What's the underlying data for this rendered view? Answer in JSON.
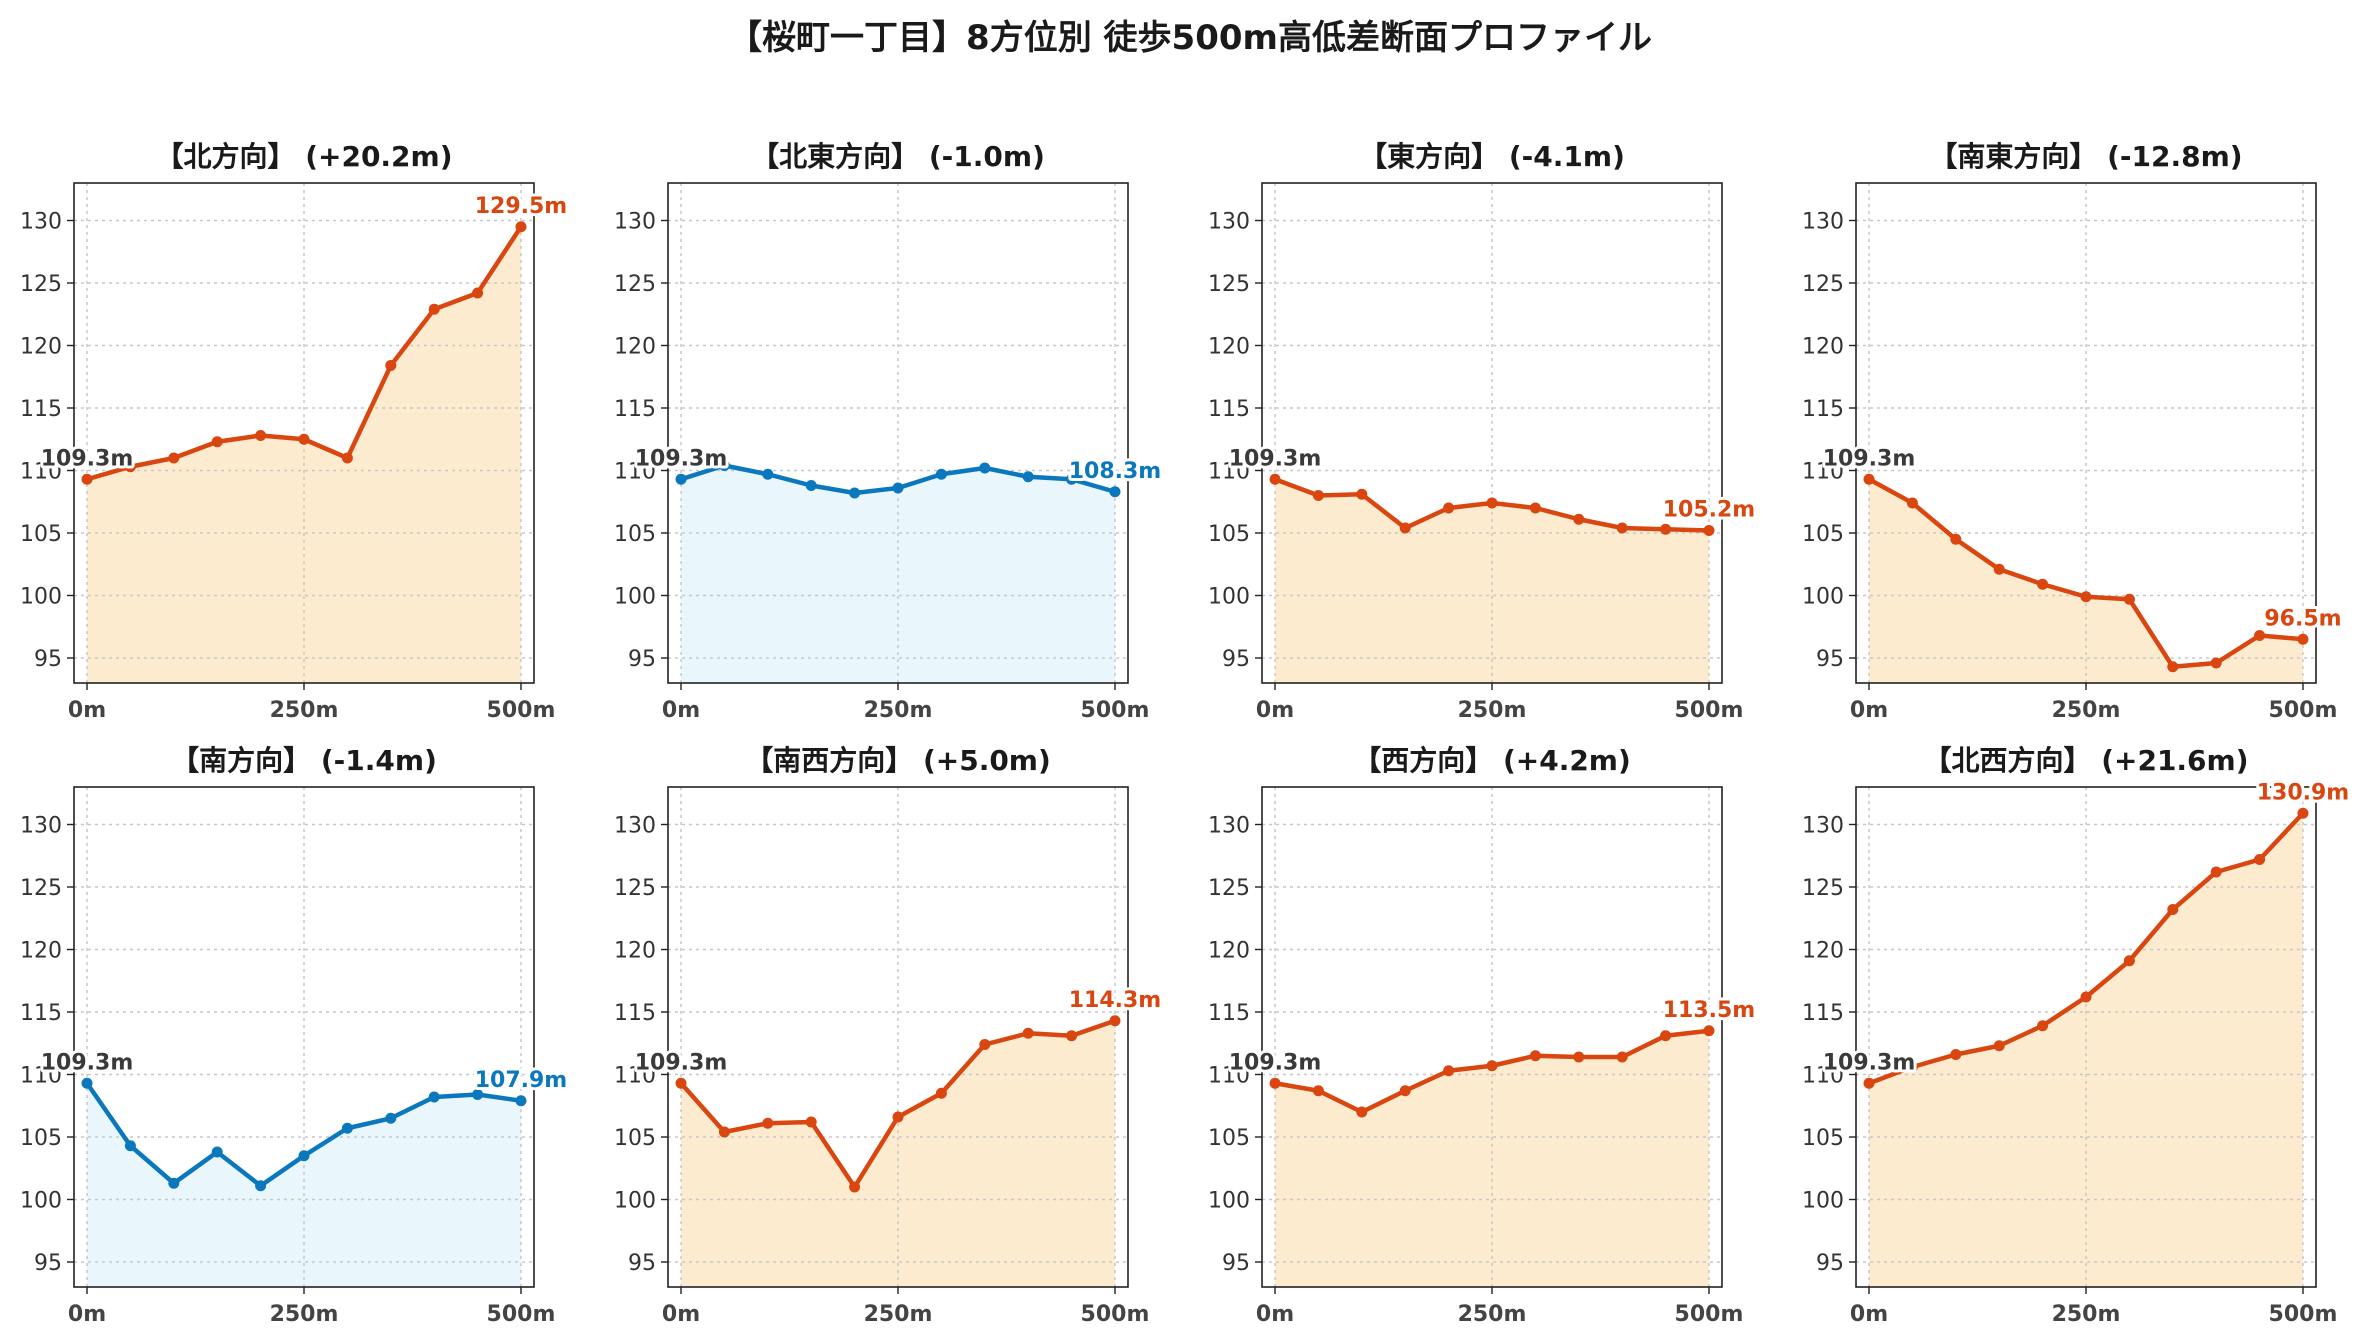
{
  "title": "【桜町一丁目】8方位別 徒歩500m高低差断面プロファイル",
  "colors": {
    "up_line": "#d9460f",
    "up_fill": "#fdebd0",
    "down_line": "#0b78be",
    "down_fill": "#e9f6fb",
    "start_label": "#3a3a3a",
    "grid": "#c8c8c8"
  },
  "chart_data": [
    {
      "type": "area",
      "title": "【北方向】 (+20.2m)",
      "x": [
        0,
        50,
        100,
        150,
        200,
        250,
        300,
        350,
        400,
        450,
        500
      ],
      "y": [
        109.3,
        110.3,
        111.0,
        112.3,
        112.8,
        112.5,
        111.0,
        118.4,
        122.9,
        124.2,
        129.5
      ],
      "xticks": [
        "0m",
        "250m",
        "500m"
      ],
      "yticks": [
        95,
        100,
        105,
        110,
        115,
        120,
        125,
        130
      ],
      "ylim": [
        93,
        133
      ],
      "xlim": [
        -15,
        515
      ],
      "start_label": "109.3m",
      "end_label": "129.5m",
      "style": "up",
      "grid": true
    },
    {
      "type": "area",
      "title": "【北東方向】 (-1.0m)",
      "x": [
        0,
        50,
        100,
        150,
        200,
        250,
        300,
        350,
        400,
        450,
        500
      ],
      "y": [
        109.3,
        110.4,
        109.7,
        108.8,
        108.2,
        108.6,
        109.7,
        110.2,
        109.5,
        109.3,
        108.3
      ],
      "xticks": [
        "0m",
        "250m",
        "500m"
      ],
      "yticks": [
        95,
        100,
        105,
        110,
        115,
        120,
        125,
        130
      ],
      "ylim": [
        93,
        133
      ],
      "xlim": [
        -15,
        515
      ],
      "start_label": "109.3m",
      "end_label": "108.3m",
      "style": "down",
      "grid": true
    },
    {
      "type": "area",
      "title": "【東方向】 (-4.1m)",
      "x": [
        0,
        50,
        100,
        150,
        200,
        250,
        300,
        350,
        400,
        450,
        500
      ],
      "y": [
        109.3,
        108.0,
        108.1,
        105.4,
        107.0,
        107.4,
        107.0,
        106.1,
        105.4,
        105.3,
        105.2
      ],
      "xticks": [
        "0m",
        "250m",
        "500m"
      ],
      "yticks": [
        95,
        100,
        105,
        110,
        115,
        120,
        125,
        130
      ],
      "ylim": [
        93,
        133
      ],
      "xlim": [
        -15,
        515
      ],
      "start_label": "109.3m",
      "end_label": "105.2m",
      "style": "up",
      "grid": true
    },
    {
      "type": "area",
      "title": "【南東方向】 (-12.8m)",
      "x": [
        0,
        50,
        100,
        150,
        200,
        250,
        300,
        350,
        400,
        450,
        500
      ],
      "y": [
        109.3,
        107.4,
        104.5,
        102.1,
        100.9,
        99.9,
        99.7,
        94.3,
        94.6,
        96.8,
        96.5
      ],
      "xticks": [
        "0m",
        "250m",
        "500m"
      ],
      "yticks": [
        95,
        100,
        105,
        110,
        115,
        120,
        125,
        130
      ],
      "ylim": [
        93,
        133
      ],
      "xlim": [
        -15,
        515
      ],
      "start_label": "109.3m",
      "end_label": "96.5m",
      "style": "up",
      "grid": true
    },
    {
      "type": "area",
      "title": "【南方向】 (-1.4m)",
      "x": [
        0,
        50,
        100,
        150,
        200,
        250,
        300,
        350,
        400,
        450,
        500
      ],
      "y": [
        109.3,
        104.3,
        101.3,
        103.8,
        101.1,
        103.5,
        105.7,
        106.5,
        108.2,
        108.4,
        107.9
      ],
      "xticks": [
        "0m",
        "250m",
        "500m"
      ],
      "yticks": [
        95,
        100,
        105,
        110,
        115,
        120,
        125,
        130
      ],
      "ylim": [
        93,
        133
      ],
      "xlim": [
        -15,
        515
      ],
      "start_label": "109.3m",
      "end_label": "107.9m",
      "style": "down",
      "grid": true
    },
    {
      "type": "area",
      "title": "【南西方向】 (+5.0m)",
      "x": [
        0,
        50,
        100,
        150,
        200,
        250,
        300,
        350,
        400,
        450,
        500
      ],
      "y": [
        109.3,
        105.4,
        106.1,
        106.2,
        101.0,
        106.6,
        108.5,
        112.4,
        113.3,
        113.1,
        114.3
      ],
      "xticks": [
        "0m",
        "250m",
        "500m"
      ],
      "yticks": [
        95,
        100,
        105,
        110,
        115,
        120,
        125,
        130
      ],
      "ylim": [
        93,
        133
      ],
      "xlim": [
        -15,
        515
      ],
      "start_label": "109.3m",
      "end_label": "114.3m",
      "style": "up",
      "grid": true
    },
    {
      "type": "area",
      "title": "【西方向】 (+4.2m)",
      "x": [
        0,
        50,
        100,
        150,
        200,
        250,
        300,
        350,
        400,
        450,
        500
      ],
      "y": [
        109.3,
        108.7,
        107.0,
        108.7,
        110.3,
        110.7,
        111.5,
        111.4,
        111.4,
        113.1,
        113.5
      ],
      "xticks": [
        "0m",
        "250m",
        "500m"
      ],
      "yticks": [
        95,
        100,
        105,
        110,
        115,
        120,
        125,
        130
      ],
      "ylim": [
        93,
        133
      ],
      "xlim": [
        -15,
        515
      ],
      "start_label": "109.3m",
      "end_label": "113.5m",
      "style": "up",
      "grid": true
    },
    {
      "type": "area",
      "title": "【北西方向】 (+21.6m)",
      "x": [
        0,
        50,
        100,
        150,
        200,
        250,
        300,
        350,
        400,
        450,
        500
      ],
      "y": [
        109.3,
        110.6,
        111.6,
        112.3,
        113.9,
        116.2,
        119.1,
        123.2,
        126.2,
        127.2,
        130.9
      ],
      "xticks": [
        "0m",
        "250m",
        "500m"
      ],
      "yticks": [
        95,
        100,
        105,
        110,
        115,
        120,
        125,
        130
      ],
      "ylim": [
        93,
        133
      ],
      "xlim": [
        -15,
        515
      ],
      "start_label": "109.3m",
      "end_label": "130.9m",
      "style": "up",
      "grid": true
    }
  ]
}
